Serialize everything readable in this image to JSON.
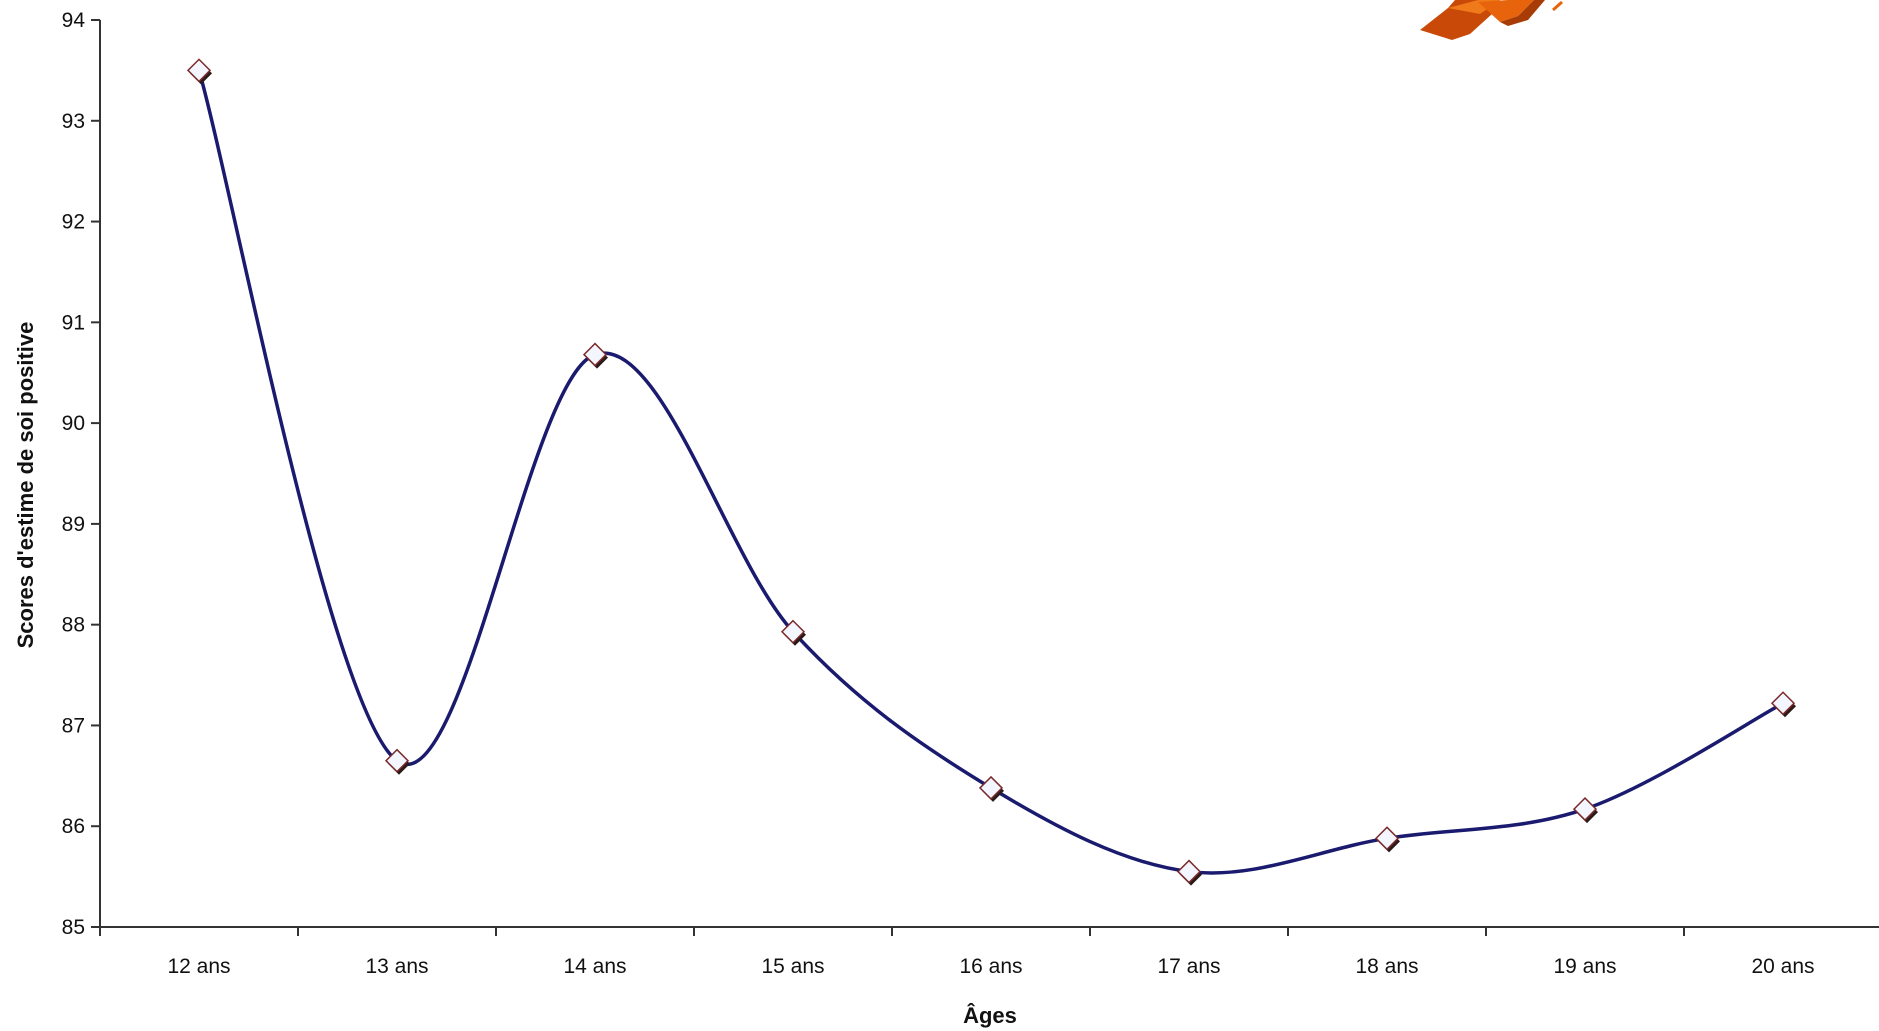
{
  "chart_data": {
    "type": "line",
    "title": "",
    "xlabel": "Âges",
    "ylabel": "Scores d'estime de soi positive",
    "categories": [
      "12 ans",
      "13 ans",
      "14 ans",
      "15 ans",
      "16 ans",
      "17 ans",
      "18 ans",
      "19 ans",
      "20 ans"
    ],
    "series": [
      {
        "values": [
          93.5,
          86.65,
          90.68,
          87.93,
          86.38,
          85.55,
          85.88,
          86.17,
          87.22
        ],
        "color": "#1a1a6e"
      }
    ],
    "ylim": [
      85,
      94
    ],
    "yticks": [
      85,
      86,
      87,
      88,
      89,
      90,
      91,
      92,
      93,
      94
    ],
    "smooth": true,
    "marker": "diamond",
    "grid": false,
    "legend": "none"
  },
  "logo": {
    "icon": "orange-3d-logo-fragment",
    "color": "#e8640c"
  }
}
